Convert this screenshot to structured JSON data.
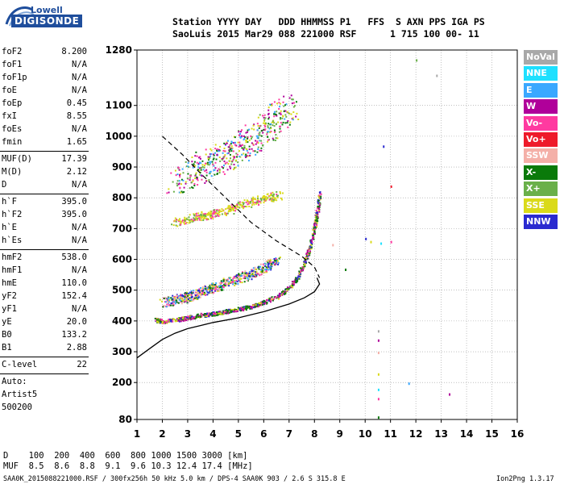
{
  "logo": {
    "top": "Lowell",
    "bottom": "DIGISONDE"
  },
  "header": {
    "line1": "Station YYYY DAY   DDD HHMMSS P1   FFS  S AXN PPS IGA PS",
    "line2": "SaoLuis 2015 Mar29 088 221000 RSF      1 715 100 00- 11"
  },
  "params_group1": [
    {
      "k": "foF2",
      "v": "8.200"
    },
    {
      "k": "foF1",
      "v": "N/A"
    },
    {
      "k": "foF1p",
      "v": "N/A"
    },
    {
      "k": "foE",
      "v": "N/A"
    },
    {
      "k": "foEp",
      "v": "0.45"
    },
    {
      "k": "fxI",
      "v": "8.55"
    },
    {
      "k": "foEs",
      "v": "N/A"
    },
    {
      "k": "fmin",
      "v": "1.65"
    }
  ],
  "params_group2": [
    {
      "k": "MUF(D)",
      "v": "17.39"
    },
    {
      "k": "M(D)",
      "v": "2.12"
    },
    {
      "k": "D",
      "v": "N/A"
    }
  ],
  "params_group3": [
    {
      "k": "h`F",
      "v": "395.0"
    },
    {
      "k": "h`F2",
      "v": "395.0"
    },
    {
      "k": "h`E",
      "v": "N/A"
    },
    {
      "k": "h`Es",
      "v": "N/A"
    }
  ],
  "params_group4": [
    {
      "k": "hmF2",
      "v": "538.0"
    },
    {
      "k": "hmF1",
      "v": "N/A"
    },
    {
      "k": "hmE",
      "v": "110.0"
    },
    {
      "k": "yF2",
      "v": "152.4"
    },
    {
      "k": "yF1",
      "v": "N/A"
    },
    {
      "k": "yE",
      "v": "20.0"
    },
    {
      "k": "B0",
      "v": "133.2"
    },
    {
      "k": "B1",
      "v": "2.88"
    }
  ],
  "clevel": {
    "k": "C-level",
    "v": "22"
  },
  "auto_lines": [
    "Auto:",
    "Artist5",
    "500200"
  ],
  "legend": [
    {
      "label": "NoVal",
      "color": "#a8a8a8"
    },
    {
      "label": "NNE",
      "color": "#1ee0ff"
    },
    {
      "label": "E",
      "color": "#3aa8ff"
    },
    {
      "label": "W",
      "color": "#b0009a"
    },
    {
      "label": "Vo-",
      "color": "#ff3aa0"
    },
    {
      "label": "Vo+",
      "color": "#ee1a2a"
    },
    {
      "label": "SSW",
      "color": "#f4b0a8"
    },
    {
      "label": "X-",
      "color": "#0a7a0a"
    },
    {
      "label": "X+",
      "color": "#6ab04a"
    },
    {
      "label": "SSE",
      "color": "#dada1a"
    },
    {
      "label": "NNW",
      "color": "#2a2ad0"
    }
  ],
  "footer": {
    "d_row": "D    100  200  400  600  800 1000 1500 3000 [km]",
    "muf_row": "MUF  8.5  8.6  8.8  9.1  9.6 10.3 12.4 17.4 [MHz]",
    "file_line": "SAA0K_2015088221000.RSF / 300fx256h 50 kHz 5.0 km / DPS-4 SAA0K 903 / 2.6 S 315.8 E",
    "version": "Ion2Png 1.3.17"
  },
  "chart_data": {
    "type": "scatter",
    "xlim": [
      1,
      16
    ],
    "ylim": [
      80,
      1280
    ],
    "x_ticks": [
      1,
      2,
      3,
      4,
      5,
      6,
      7,
      8,
      9,
      10,
      11,
      12,
      13,
      14,
      15,
      16
    ],
    "y_ticks": [
      80,
      200,
      300,
      400,
      500,
      600,
      700,
      800,
      900,
      1000,
      1100,
      1280
    ],
    "grid": true,
    "legend_position": "right",
    "profile_solid": [
      [
        1.0,
        280
      ],
      [
        1.5,
        310
      ],
      [
        2.0,
        340
      ],
      [
        2.5,
        360
      ],
      [
        3.0,
        375
      ],
      [
        3.5,
        385
      ],
      [
        4.0,
        395
      ],
      [
        5.0,
        410
      ],
      [
        6.0,
        430
      ],
      [
        7.0,
        455
      ],
      [
        7.6,
        475
      ],
      [
        8.0,
        495
      ],
      [
        8.2,
        520
      ],
      [
        8.1,
        540
      ]
    ],
    "profile_dashed": [
      [
        2.0,
        1000
      ],
      [
        2.8,
        940
      ],
      [
        3.5,
        880
      ],
      [
        4.5,
        800
      ],
      [
        5.5,
        720
      ],
      [
        6.5,
        660
      ],
      [
        7.5,
        610
      ],
      [
        8.0,
        575
      ],
      [
        8.2,
        540
      ]
    ],
    "trace_F2_lower": [
      [
        1.7,
        405
      ],
      [
        2.0,
        400
      ],
      [
        2.5,
        405
      ],
      [
        3.0,
        412
      ],
      [
        3.5,
        420
      ],
      [
        4.0,
        425
      ],
      [
        4.5,
        432
      ],
      [
        5.0,
        440
      ],
      [
        5.5,
        448
      ],
      [
        6.0,
        462
      ],
      [
        6.5,
        480
      ],
      [
        7.0,
        510
      ],
      [
        7.3,
        540
      ],
      [
        7.6,
        590
      ],
      [
        7.8,
        640
      ],
      [
        8.0,
        710
      ],
      [
        8.1,
        760
      ],
      [
        8.2,
        820
      ]
    ],
    "trace_F2_upper": [
      [
        2.0,
        460
      ],
      [
        2.5,
        470
      ],
      [
        3.0,
        480
      ],
      [
        3.5,
        495
      ],
      [
        4.0,
        510
      ],
      [
        4.5,
        525
      ],
      [
        5.0,
        540
      ],
      [
        5.5,
        555
      ],
      [
        6.0,
        575
      ],
      [
        6.5,
        600
      ]
    ],
    "trace_second_hop": [
      [
        2.5,
        720
      ],
      [
        3.0,
        730
      ],
      [
        3.5,
        740
      ],
      [
        4.0,
        750
      ],
      [
        4.5,
        760
      ],
      [
        5.0,
        775
      ],
      [
        5.5,
        790
      ],
      [
        6.0,
        800
      ],
      [
        6.5,
        810
      ]
    ],
    "trace_upper_scatter": [
      [
        2.5,
        850
      ],
      [
        3.0,
        880
      ],
      [
        3.5,
        900
      ],
      [
        4.0,
        920
      ],
      [
        4.5,
        940
      ],
      [
        5.0,
        960
      ],
      [
        5.5,
        990
      ],
      [
        6.0,
        1020
      ],
      [
        6.5,
        1060
      ],
      [
        7.0,
        1100
      ]
    ],
    "isolated_points": [
      [
        10.5,
        370
      ],
      [
        10.5,
        340
      ],
      [
        10.5,
        300
      ],
      [
        10.5,
        230
      ],
      [
        10.5,
        180
      ],
      [
        10.5,
        150
      ],
      [
        10.5,
        90
      ],
      [
        10.7,
        970
      ],
      [
        11.7,
        200
      ],
      [
        11.0,
        840
      ],
      [
        12.0,
        1250
      ],
      [
        12.8,
        1200
      ],
      [
        13.3,
        165
      ],
      [
        8.7,
        650
      ],
      [
        10.2,
        660
      ],
      [
        10.6,
        655
      ],
      [
        11.0,
        660
      ],
      [
        9.2,
        570
      ],
      [
        10.0,
        670
      ]
    ]
  }
}
